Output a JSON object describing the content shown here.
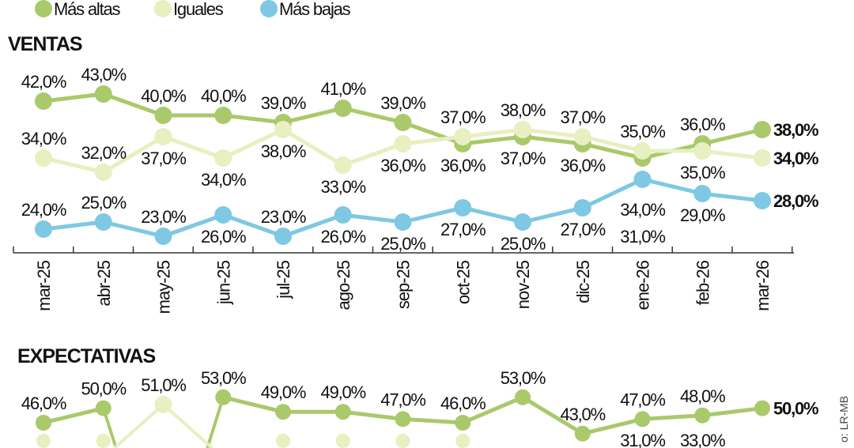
{
  "legend": [
    {
      "label": "Más altas",
      "color": "#a9c96b"
    },
    {
      "label": "Iguales",
      "color": "#e8efc0"
    },
    {
      "label": "Más bajas",
      "color": "#7ec8e3"
    }
  ],
  "source": "o: LR-MB",
  "chart_data": [
    {
      "type": "line",
      "title": "VENTAS",
      "categories": [
        "mar-25",
        "abr-25",
        "may-25",
        "jun-25",
        "jul-25",
        "ago-25",
        "sep-25",
        "oct-25",
        "nov-25",
        "dic-25",
        "ene-26",
        "feb-26",
        "mar-26"
      ],
      "series": [
        {
          "name": "Más altas",
          "color": "#a9c96b",
          "values": [
            42,
            43,
            40,
            40,
            39,
            41,
            39,
            36,
            37,
            36,
            34,
            36,
            38
          ]
        },
        {
          "name": "Iguales",
          "color": "#e8efc0",
          "values": [
            34,
            32,
            37,
            34,
            38,
            33,
            36,
            37,
            38,
            37,
            35,
            35,
            34
          ]
        },
        {
          "name": "Más bajas",
          "color": "#7ec8e3",
          "values": [
            24,
            25,
            23,
            26,
            23,
            26,
            25,
            27,
            25,
            27,
            31,
            29,
            28
          ]
        }
      ],
      "label_format": "0,0%",
      "grid": false,
      "legend_position": "top-left"
    },
    {
      "type": "line",
      "title": "EXPECTATIVAS",
      "categories": [
        "mar-25",
        "abr-25",
        "may-25",
        "jun-25",
        "jul-25",
        "ago-25",
        "sep-25",
        "oct-25",
        "nov-25",
        "dic-25",
        "ene-26",
        "feb-26",
        "mar-26"
      ],
      "series": [
        {
          "name": "Más altas",
          "color": "#a9c96b",
          "values": [
            46,
            50,
            null,
            53,
            49,
            49,
            47,
            46,
            53,
            43,
            47,
            48,
            50
          ]
        },
        {
          "name": "Iguales",
          "color": "#e8efc0",
          "values": [
            null,
            null,
            51,
            null,
            null,
            null,
            null,
            null,
            null,
            null,
            null,
            null,
            null
          ]
        }
      ],
      "partial_labels": [
        "31,0%",
        "33,0%"
      ]
    }
  ]
}
